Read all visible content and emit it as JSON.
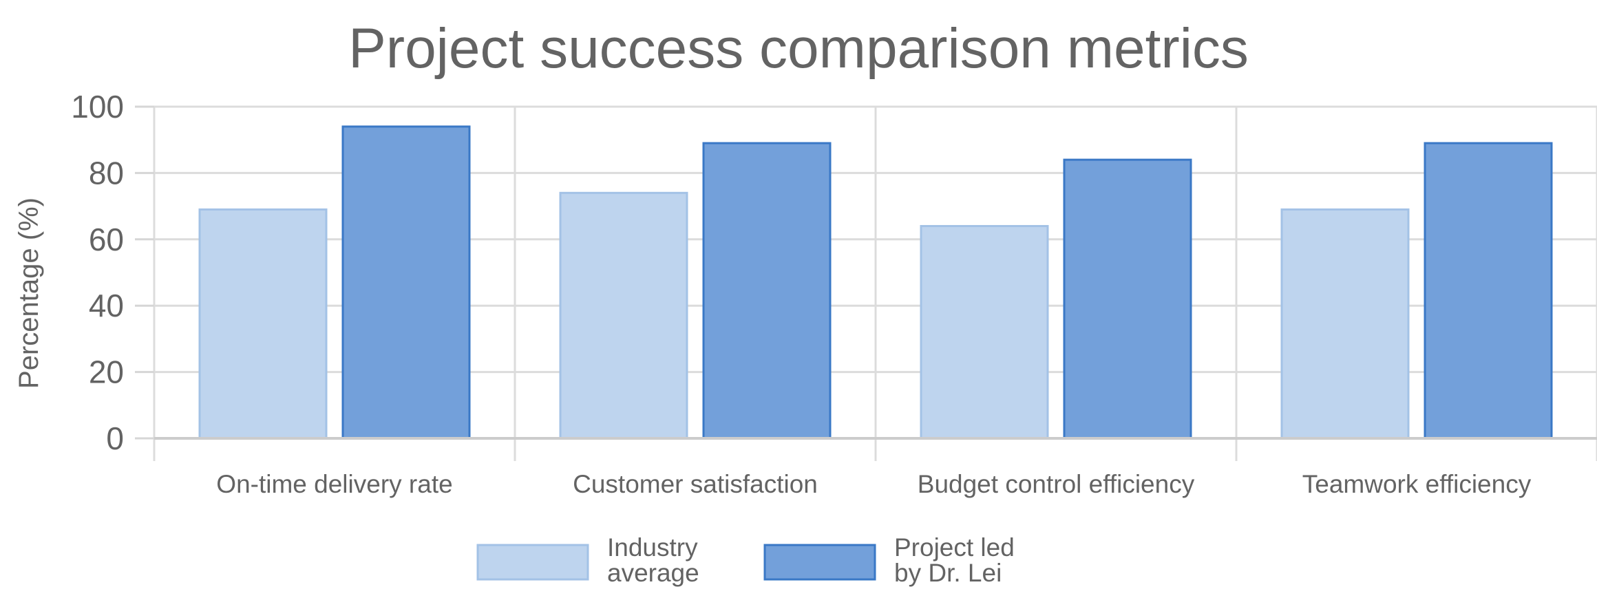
{
  "chart_data": {
    "type": "bar",
    "title": "Project success comparison metrics",
    "xlabel": "",
    "ylabel": "Percentage  (%)",
    "ylim": [
      0,
      100
    ],
    "yticks": [
      0,
      20,
      40,
      60,
      80,
      100
    ],
    "grid": true,
    "legend_position": "bottom",
    "categories": [
      "On-time delivery rate",
      "Customer satisfaction",
      "Budget control efficiency",
      "Teamwork efficiency"
    ],
    "series": [
      {
        "name": "Industry average",
        "legend_lines": [
          "Industry",
          "average"
        ],
        "values": [
          69,
          74,
          64,
          69
        ],
        "fill": "#bed4ee",
        "stroke": "#a3c2e6"
      },
      {
        "name": "Project led by Dr. Lei",
        "legend_lines": [
          "Project led",
          "by Dr. Lei"
        ],
        "values": [
          94,
          89,
          84,
          89
        ],
        "fill": "#73a0da",
        "stroke": "#3a78c6"
      }
    ]
  }
}
